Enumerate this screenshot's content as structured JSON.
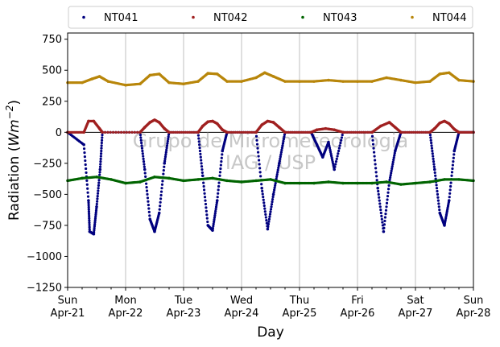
{
  "chart_data": {
    "type": "scatter",
    "xlabel": "Day",
    "ylabel": "Radiation (Wm⁻²)",
    "ylim": [
      -1250,
      800
    ],
    "xlim": [
      0,
      7
    ],
    "grid": "vertical at day boundaries",
    "legend_placement": "top, above plot",
    "yticks": [
      "−1250",
      "−1000",
      "−750",
      "−500",
      "−250",
      "0",
      "250",
      "500",
      "750"
    ],
    "ytick_values": [
      -1250,
      -1000,
      -750,
      -500,
      -250,
      0,
      250,
      500,
      750
    ],
    "xticks": [
      {
        "v": 0,
        "line1": "Sun",
        "line2": "Apr-21"
      },
      {
        "v": 1,
        "line1": "Mon",
        "line2": "Apr-22"
      },
      {
        "v": 2,
        "line1": "Tue",
        "line2": "Apr-23"
      },
      {
        "v": 3,
        "line1": "Wed",
        "line2": "Apr-24"
      },
      {
        "v": 4,
        "line1": "Thu",
        "line2": "Apr-25"
      },
      {
        "v": 5,
        "line1": "Fri",
        "line2": "Apr-26"
      },
      {
        "v": 6,
        "line1": "Sat",
        "line2": "Apr-27"
      },
      {
        "v": 7,
        "line1": "Sun",
        "line2": "Apr-28"
      }
    ],
    "watermark_line1": "Grupo de Micrometeorologia",
    "watermark_line2": "IAG / USP",
    "series": [
      {
        "name": "NT041",
        "color": "#00007f",
        "x": [
          0,
          0.28,
          0.36,
          0.38,
          0.45,
          0.5,
          0.56,
          0.6,
          1.25,
          1.33,
          1.42,
          1.5,
          1.58,
          1.67,
          1.75,
          2.25,
          2.33,
          2.42,
          2.5,
          2.58,
          2.67,
          2.75,
          3.25,
          3.35,
          3.45,
          3.55,
          3.65,
          3.75,
          4.2,
          4.3,
          4.4,
          4.5,
          4.6,
          4.75,
          5.25,
          5.35,
          5.45,
          5.55,
          5.65,
          5.75,
          6.25,
          6.33,
          6.42,
          6.5,
          6.58,
          6.67,
          6.75,
          7.0
        ],
        "y": [
          0,
          -100,
          -550,
          -800,
          -820,
          -600,
          -300,
          0,
          0,
          -300,
          -700,
          -800,
          -650,
          -250,
          0,
          0,
          -350,
          -750,
          -790,
          -550,
          -150,
          0,
          0,
          -450,
          -780,
          -500,
          -250,
          0,
          0,
          -100,
          -200,
          -80,
          -300,
          0,
          0,
          -450,
          -800,
          -400,
          -150,
          0,
          0,
          -300,
          -650,
          -750,
          -550,
          -150,
          0,
          0
        ]
      },
      {
        "name": "NT042",
        "color": "#a02020",
        "x": [
          0,
          0.28,
          0.36,
          0.45,
          0.55,
          0.6,
          1.25,
          1.33,
          1.42,
          1.5,
          1.58,
          1.67,
          1.75,
          2.25,
          2.33,
          2.42,
          2.5,
          2.58,
          2.67,
          2.75,
          3.25,
          3.35,
          3.45,
          3.55,
          3.65,
          3.75,
          4.2,
          4.3,
          4.45,
          4.6,
          4.75,
          5.25,
          5.4,
          5.55,
          5.65,
          5.75,
          6.25,
          6.33,
          6.42,
          6.5,
          6.58,
          6.67,
          6.75,
          7.0
        ],
        "y": [
          0,
          0,
          90,
          90,
          30,
          0,
          0,
          40,
          80,
          100,
          80,
          30,
          0,
          0,
          50,
          85,
          90,
          70,
          20,
          0,
          0,
          60,
          90,
          80,
          40,
          0,
          0,
          20,
          30,
          20,
          0,
          0,
          50,
          80,
          40,
          0,
          0,
          30,
          75,
          90,
          70,
          25,
          0,
          0
        ]
      },
      {
        "name": "NT043",
        "color": "#006400",
        "x": [
          0,
          0.25,
          0.5,
          0.75,
          1,
          1.25,
          1.5,
          1.75,
          2,
          2.25,
          2.5,
          2.75,
          3,
          3.25,
          3.5,
          3.75,
          4,
          4.25,
          4.5,
          4.75,
          5,
          5.25,
          5.5,
          5.75,
          6,
          6.25,
          6.5,
          6.75,
          7
        ],
        "y": [
          -390,
          -370,
          -360,
          -380,
          -410,
          -400,
          -360,
          -370,
          -390,
          -380,
          -370,
          -390,
          -400,
          -390,
          -380,
          -410,
          -410,
          -410,
          -400,
          -410,
          -410,
          -410,
          -400,
          -420,
          -410,
          -400,
          -380,
          -380,
          -390
        ]
      },
      {
        "name": "NT044",
        "color": "#b8860b",
        "x": [
          0,
          0.25,
          0.42,
          0.55,
          0.7,
          1,
          1.25,
          1.42,
          1.58,
          1.75,
          2,
          2.25,
          2.42,
          2.58,
          2.75,
          3,
          3.25,
          3.4,
          3.55,
          3.75,
          4,
          4.25,
          4.5,
          4.75,
          5,
          5.25,
          5.5,
          5.75,
          6,
          6.25,
          6.42,
          6.58,
          6.75,
          7
        ],
        "y": [
          400,
          400,
          430,
          450,
          410,
          380,
          390,
          460,
          470,
          400,
          390,
          410,
          475,
          470,
          410,
          410,
          440,
          480,
          450,
          410,
          410,
          410,
          420,
          410,
          410,
          410,
          440,
          420,
          400,
          410,
          470,
          480,
          420,
          410
        ]
      }
    ]
  }
}
